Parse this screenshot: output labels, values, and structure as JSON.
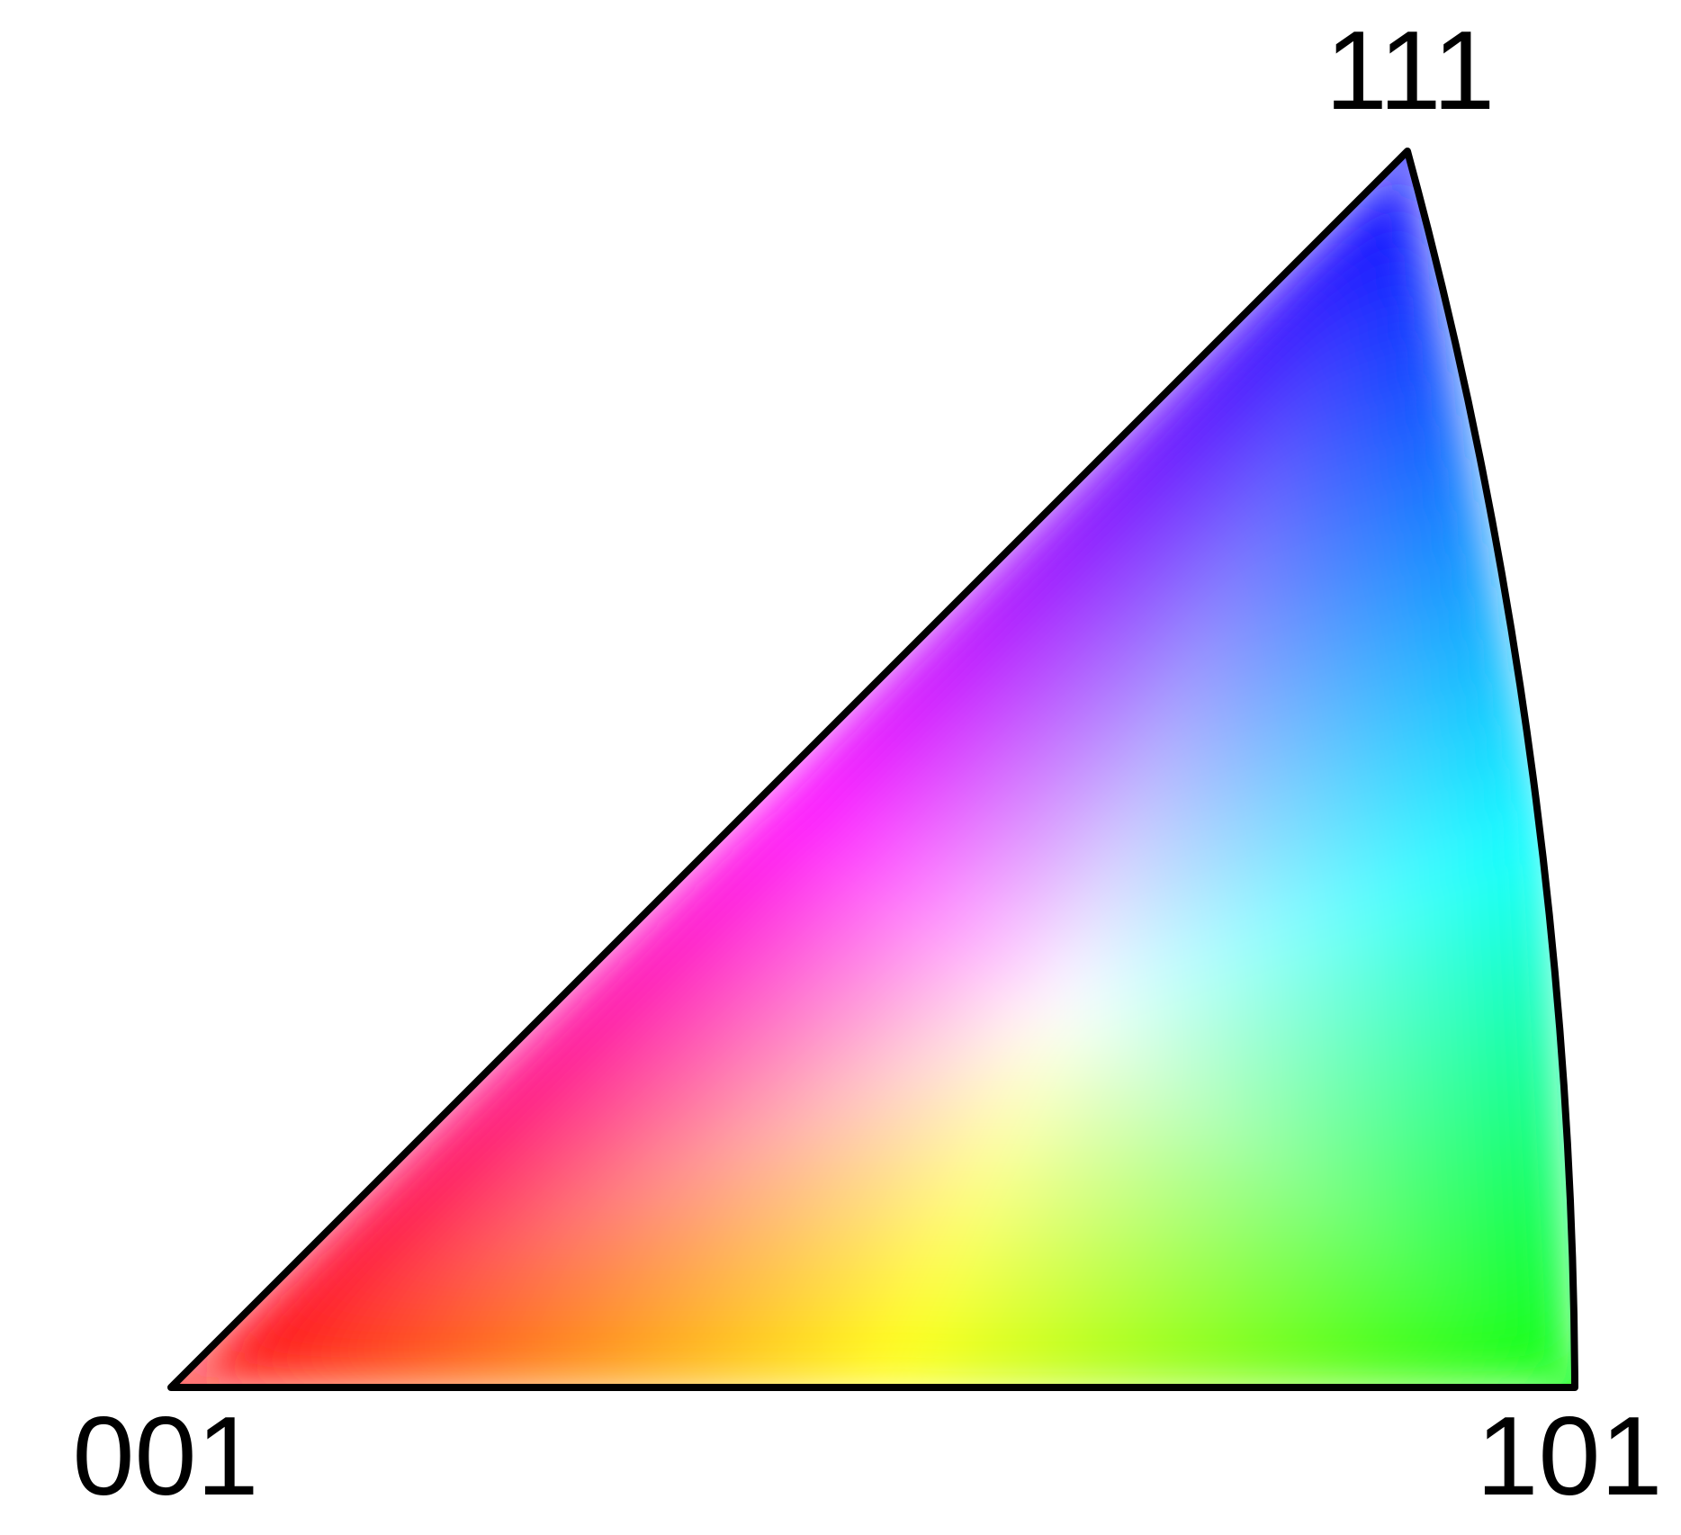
{
  "figure": {
    "type": "inverse pole figure color key",
    "outline_color": "#000000",
    "background": "#ffffff"
  },
  "poles": {
    "p001": {
      "label": "001",
      "color": "#ff0000"
    },
    "p101": {
      "label": "101",
      "color": "#00ff00"
    },
    "p111": {
      "label": "111",
      "color": "#0000ff"
    }
  },
  "edge_midpoint_colors": {
    "p001_p101": "#ffff00",
    "p101_p111": "#00ffff",
    "p001_p111": "#ff00ff"
  },
  "center_color": "#ffffff"
}
